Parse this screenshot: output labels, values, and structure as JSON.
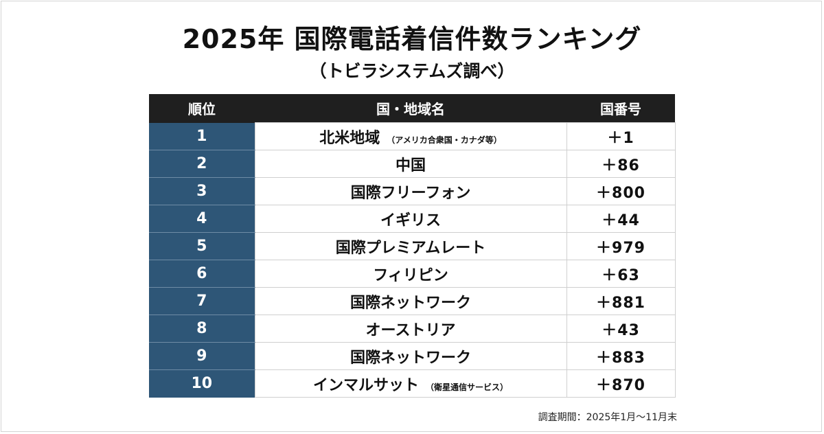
{
  "title": "2025年 国際電話着信件数ランキング",
  "subtitle": "（トビラシステムズ調べ）",
  "table": {
    "headers": [
      "順位",
      "国・地域名",
      "国番号"
    ],
    "rows": [
      {
        "rank": "1",
        "name": "北米地域",
        "note": "（アメリカ合衆国・カナダ等）",
        "code": "＋1"
      },
      {
        "rank": "2",
        "name": "中国",
        "note": "",
        "code": "＋86"
      },
      {
        "rank": "3",
        "name": "国際フリーフォン",
        "note": "",
        "code": "＋800"
      },
      {
        "rank": "4",
        "name": "イギリス",
        "note": "",
        "code": "＋44"
      },
      {
        "rank": "5",
        "name": "国際プレミアムレート",
        "note": "",
        "code": "＋979"
      },
      {
        "rank": "6",
        "name": "フィリピン",
        "note": "",
        "code": "＋63"
      },
      {
        "rank": "7",
        "name": "国際ネットワーク",
        "note": "",
        "code": "＋881"
      },
      {
        "rank": "8",
        "name": "オーストリア",
        "note": "",
        "code": "＋43"
      },
      {
        "rank": "9",
        "name": "国際ネットワーク",
        "note": "",
        "code": "＋883"
      },
      {
        "rank": "10",
        "name": "インマルサット",
        "note": "（衛星通信サービス）",
        "code": "＋870"
      }
    ]
  },
  "footnote": "調査期間：2025年1月～11月末",
  "colors": {
    "header_bg": "#1f1f1f",
    "rank_bg": "#2e5677",
    "border": "#cfcfcf"
  }
}
